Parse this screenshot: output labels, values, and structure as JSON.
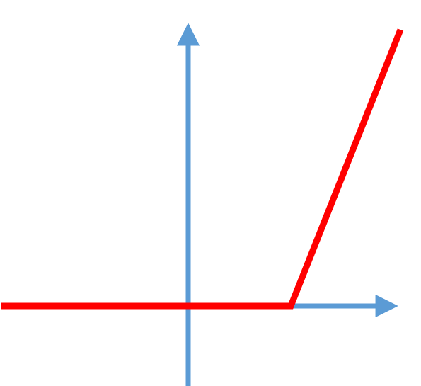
{
  "chart_data": {
    "type": "line",
    "title": "",
    "xlabel": "",
    "ylabel": "",
    "grid": false,
    "legend": "none",
    "axes_color": "#5B9BD5",
    "series": [
      {
        "color": "#FF0000",
        "points": [
          {
            "x": -2.65,
            "y": 0
          },
          {
            "x": 1.45,
            "y": 0
          },
          {
            "x": 3.0,
            "y": 3.9
          }
        ]
      }
    ]
  }
}
